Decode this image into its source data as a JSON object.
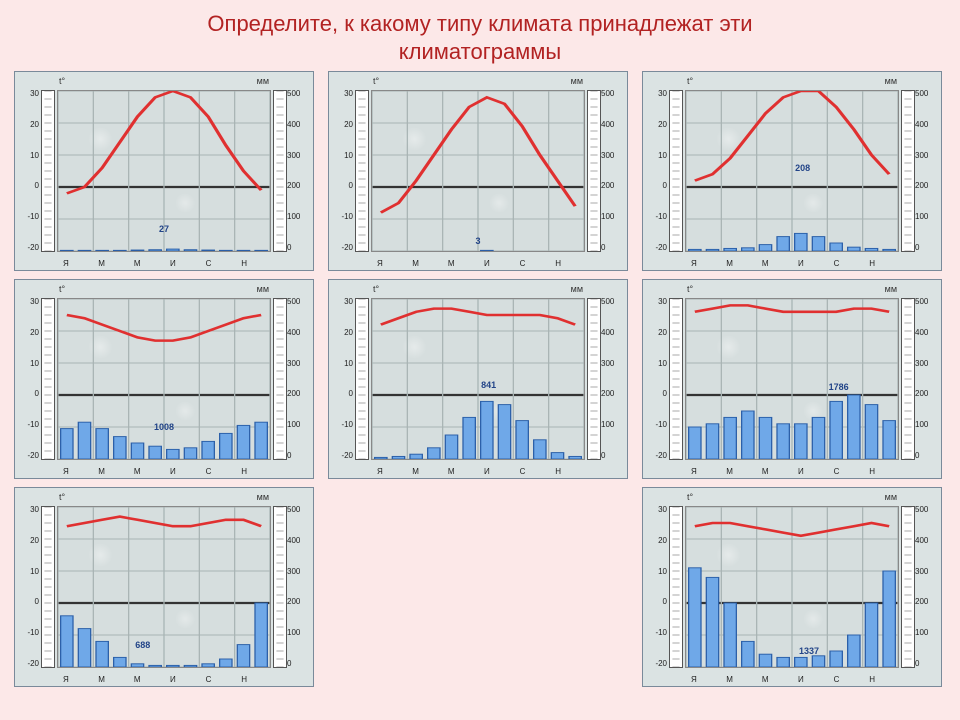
{
  "title_line1": "Определите, к какому типу климата принадлежат эти",
  "title_line2": "климатограммы",
  "common": {
    "left_axis_label": "t°",
    "right_axis_label": "мм",
    "left_ticks": [
      30,
      20,
      10,
      0,
      -10,
      -20
    ],
    "right_ticks": [
      500,
      400,
      300,
      200,
      100,
      0
    ],
    "months": [
      "Я",
      "",
      "М",
      "",
      "М",
      "",
      "И",
      "",
      "С",
      "",
      "Н",
      ""
    ],
    "temp_min": -20,
    "temp_max": 30,
    "precip_min": 0,
    "precip_max": 500,
    "colors": {
      "page_bg": "#fce8e8",
      "panel_bg": "#dbe3e3",
      "plot_bg": "#d6dede",
      "grid": "#a8b4b4",
      "zero": "#333333",
      "temp_line": "#e03030",
      "bar_fill": "#6fa8e8",
      "bar_stroke": "#2b5fa8",
      "title_color": "#b22222",
      "annotation_color": "#224488"
    },
    "title_fontsize": 22,
    "tick_fontsize": 8,
    "axis_label_fontsize": 9,
    "annotation_fontsize": 9
  },
  "panels": [
    {
      "id": "p1",
      "row": 0,
      "col": 0,
      "temp": [
        -2,
        0,
        6,
        14,
        22,
        28,
        30,
        28,
        22,
        13,
        5,
        -1
      ],
      "precip": [
        2,
        2,
        2,
        2,
        3,
        4,
        6,
        4,
        3,
        2,
        2,
        2
      ],
      "annotation": "27",
      "ann_xy": [
        0.5,
        0.86
      ]
    },
    {
      "id": "p2",
      "row": 0,
      "col": 1,
      "temp": [
        -8,
        -5,
        2,
        10,
        18,
        25,
        28,
        26,
        19,
        10,
        2,
        -6
      ],
      "precip": [
        0,
        0,
        0,
        0,
        0,
        0,
        2,
        0,
        0,
        0,
        0,
        0
      ],
      "annotation": "3",
      "ann_xy": [
        0.5,
        0.94
      ]
    },
    {
      "id": "p3",
      "row": 0,
      "col": 2,
      "temp": [
        2,
        4,
        9,
        16,
        23,
        28,
        30,
        30,
        25,
        18,
        10,
        4
      ],
      "precip": [
        5,
        5,
        8,
        10,
        20,
        45,
        55,
        45,
        25,
        12,
        8,
        5
      ],
      "annotation": "208",
      "ann_xy": [
        0.55,
        0.48
      ]
    },
    {
      "id": "p4",
      "row": 1,
      "col": 0,
      "temp": [
        25,
        24,
        22,
        20,
        18,
        17,
        17,
        18,
        20,
        22,
        24,
        25
      ],
      "precip": [
        95,
        115,
        95,
        70,
        50,
        40,
        30,
        35,
        55,
        80,
        105,
        115
      ],
      "annotation": "1008",
      "ann_xy": [
        0.5,
        0.8
      ]
    },
    {
      "id": "p5",
      "row": 1,
      "col": 1,
      "temp": [
        22,
        24,
        26,
        27,
        27,
        26,
        25,
        25,
        25,
        25,
        24,
        22
      ],
      "precip": [
        5,
        8,
        15,
        35,
        75,
        130,
        180,
        170,
        120,
        60,
        20,
        8
      ],
      "annotation": "841",
      "ann_xy": [
        0.55,
        0.54
      ]
    },
    {
      "id": "p6",
      "row": 1,
      "col": 2,
      "temp": [
        26,
        27,
        28,
        28,
        27,
        26,
        26,
        26,
        26,
        27,
        27,
        26
      ],
      "precip": [
        100,
        110,
        130,
        150,
        130,
        110,
        110,
        130,
        180,
        200,
        170,
        120
      ],
      "annotation": "1786",
      "ann_xy": [
        0.72,
        0.55
      ]
    },
    {
      "id": "p7",
      "row": 2,
      "col": 0,
      "temp": [
        24,
        25,
        26,
        27,
        26,
        25,
        24,
        24,
        25,
        26,
        26,
        24
      ],
      "precip": [
        160,
        120,
        80,
        30,
        10,
        5,
        5,
        5,
        10,
        25,
        70,
        200
      ],
      "annotation": "688",
      "ann_xy": [
        0.4,
        0.86
      ]
    },
    {
      "id": "p8",
      "row": 2,
      "col": 1,
      "empty": true
    },
    {
      "id": "p9",
      "row": 2,
      "col": 2,
      "temp": [
        24,
        25,
        25,
        24,
        23,
        22,
        21,
        22,
        23,
        24,
        25,
        24
      ],
      "precip": [
        310,
        280,
        200,
        80,
        40,
        30,
        30,
        35,
        50,
        100,
        200,
        300
      ],
      "annotation": "1337",
      "ann_xy": [
        0.58,
        0.9
      ]
    }
  ]
}
